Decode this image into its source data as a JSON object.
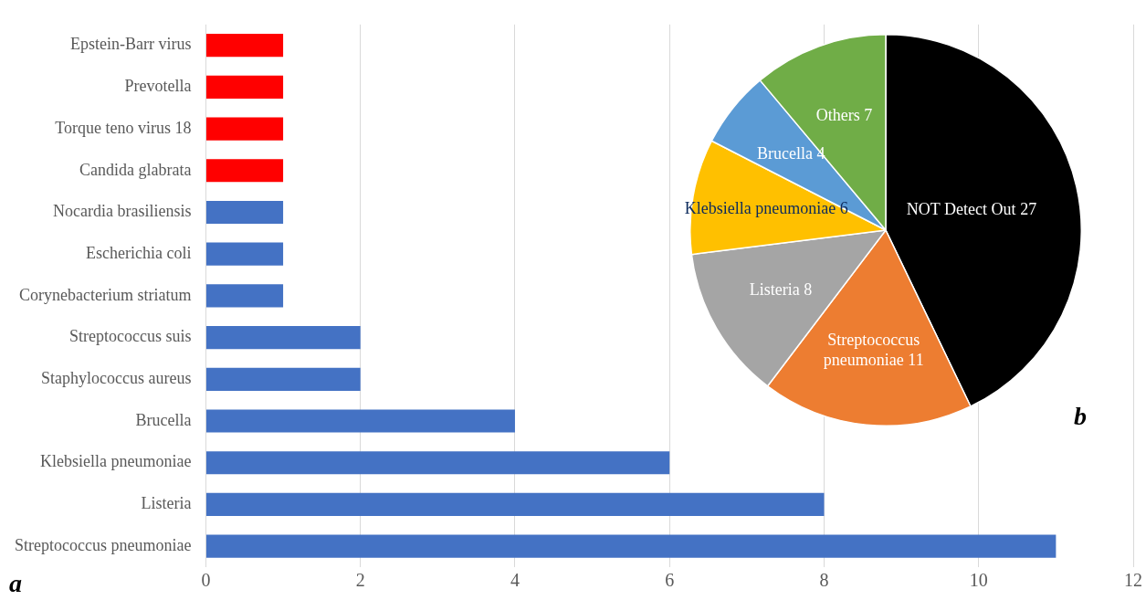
{
  "chart_data": [
    {
      "type": "bar",
      "orientation": "horizontal",
      "categories": [
        "Epstein-Barr virus",
        "Prevotella",
        "Torque teno virus 18",
        "Candida glabrata",
        "Nocardia brasiliensis",
        "Escherichia coli",
        "Corynebacterium striatum",
        "Streptococcus suis",
        "Staphylococcus aureus",
        "Brucella",
        "Klebsiella pneumoniae",
        "Listeria",
        "Streptococcus pneumoniae"
      ],
      "values": [
        1,
        1,
        1,
        1,
        1,
        1,
        1,
        2,
        2,
        4,
        6,
        8,
        11
      ],
      "colors": [
        "#ff0000",
        "#ff0000",
        "#ff0000",
        "#ff0000",
        "#4472c4",
        "#4472c4",
        "#4472c4",
        "#4472c4",
        "#4472c4",
        "#4472c4",
        "#4472c4",
        "#4472c4",
        "#4472c4"
      ],
      "xlim": [
        0,
        12
      ],
      "xticks": [
        0,
        2,
        4,
        6,
        8,
        10,
        12
      ],
      "grid": "x",
      "legend": false,
      "annotations": [
        "a"
      ]
    },
    {
      "type": "pie",
      "categories": [
        "NOT Detect Out",
        "Streptococcus pneumoniae",
        "Listeria",
        "Klebsiella pneumoniae",
        "Brucella",
        "Others"
      ],
      "values": [
        27,
        11,
        8,
        6,
        4,
        7
      ],
      "colors": [
        "#000000",
        "#ed7d31",
        "#a5a5a5",
        "#ffc000",
        "#5b9bd5",
        "#70ad47"
      ],
      "data_labels": true,
      "legend": false,
      "annotations": [
        "b"
      ]
    }
  ]
}
